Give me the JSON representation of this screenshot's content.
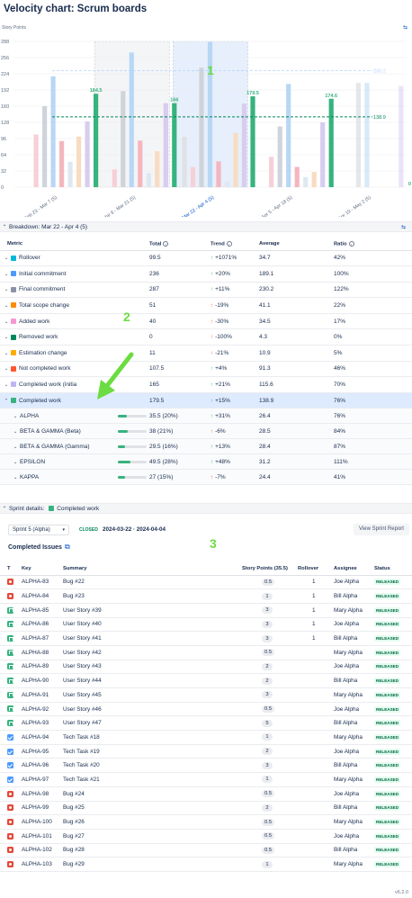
{
  "title": "Velocity chart: Scrum boards",
  "chart": {
    "ylabel": "Story Points",
    "yticks": [
      "288",
      "256",
      "224",
      "192",
      "160",
      "128",
      "96",
      "64",
      "32",
      "0"
    ],
    "groups": [
      {
        "label": "Feb 23 - Mar 7 (5)",
        "bars": [
          {
            "v": 0,
            "c": "#dfe1e6"
          },
          {
            "v": 104,
            "c": "#f6d0d7"
          },
          {
            "v": 160,
            "c": "#cfd4db"
          },
          {
            "v": 219,
            "c": "#b8d7f5"
          },
          {
            "v": 91,
            "c": "#f4b6bd"
          },
          {
            "v": 50,
            "c": "#dfe8f0"
          },
          {
            "v": 100,
            "c": "#f8dcc2"
          },
          {
            "v": 130,
            "c": "#d8ccf0"
          },
          {
            "v": 184.5,
            "c": "#36b37e",
            "label": "184.5"
          }
        ]
      },
      {
        "label": "Mar 8 - Mar 21 (5)",
        "bars": [
          {
            "v": 0,
            "c": "#dfe1e6"
          },
          {
            "v": 35,
            "c": "#f6d0d7"
          },
          {
            "v": 190,
            "c": "#cfd4db"
          },
          {
            "v": 266,
            "c": "#b8d7f5"
          },
          {
            "v": 92,
            "c": "#f4b6bd"
          },
          {
            "v": 28,
            "c": "#dfe8f0"
          },
          {
            "v": 71,
            "c": "#f8dcc2"
          },
          {
            "v": 166,
            "c": "#d8ccf0"
          },
          {
            "v": 166,
            "c": "#36b37e",
            "label": "166"
          }
        ]
      },
      {
        "label": "Mar 22 - Apr 4 (5)",
        "bars": [
          {
            "v": 99.5,
            "c": "#dfe1e6"
          },
          {
            "v": 40,
            "c": "#f6d0d7"
          },
          {
            "v": 236,
            "c": "#cfd4db"
          },
          {
            "v": 287,
            "c": "#b8d7f5"
          },
          {
            "v": 51,
            "c": "#f4b6bd"
          },
          {
            "v": 11,
            "c": "#dfe8f0"
          },
          {
            "v": 107.5,
            "c": "#f8dcc2"
          },
          {
            "v": 165,
            "c": "#d8ccf0"
          },
          {
            "v": 179.5,
            "c": "#36b37e",
            "label": "179.5"
          }
        ],
        "selected": true
      },
      {
        "label": "Apr 5 - Apr 18 (5)",
        "bars": [
          {
            "v": 0,
            "c": "#dfe1e6"
          },
          {
            "v": 60,
            "c": "#f6d0d7"
          },
          {
            "v": 120,
            "c": "#cfd4db"
          },
          {
            "v": 204,
            "c": "#b8d7f5"
          },
          {
            "v": 40,
            "c": "#f4b6bd"
          },
          {
            "v": 20,
            "c": "#dfe8f0"
          },
          {
            "v": 30,
            "c": "#f8dcc2"
          },
          {
            "v": 128,
            "c": "#d8ccf0"
          },
          {
            "v": 174.6,
            "c": "#36b37e",
            "label": "174.6"
          }
        ]
      },
      {
        "label": "Apr 19 - May 2 (5)",
        "bars": [
          {
            "v": 0,
            "c": "#dfe1e6"
          },
          {
            "v": 0,
            "c": "#f6d0d7"
          },
          {
            "v": 206,
            "c": "#cfd4db"
          },
          {
            "v": 206,
            "c": "#b8d7f5"
          },
          {
            "v": 0,
            "c": "#f4b6bd"
          },
          {
            "v": 0,
            "c": "#dfe8f0"
          },
          {
            "v": 0,
            "c": "#f8dcc2"
          },
          {
            "v": 200,
            "c": "#d8ccf0"
          },
          {
            "v": 0,
            "c": "#36b37e",
            "label": "0"
          }
        ],
        "future": true
      }
    ],
    "avg_line": {
      "value": 138.9,
      "label": "138.9"
    },
    "commit_line": {
      "value": 230.2,
      "label": "230.2"
    }
  },
  "chart_data": {
    "type": "bar",
    "ylabel": "Story Points",
    "ylim": [
      0,
      288
    ],
    "categories": [
      "Feb 23 - Mar 7 (5)",
      "Mar 8 - Mar 21 (5)",
      "Mar 22 - Apr 4 (5)",
      "Apr 5 - Apr 18 (5)",
      "Apr 19 - May 2 (5)"
    ],
    "series": [
      {
        "name": "Completed work",
        "values": [
          184.5,
          166,
          179.5,
          174.6,
          0
        ]
      }
    ],
    "reference_lines": [
      138.9,
      230.2
    ]
  },
  "breakdown": {
    "title": "Breakdown: Mar 22 - Apr 4 (5)",
    "headers": {
      "metric": "Metric",
      "total": "Total",
      "trend": "Trend",
      "average": "Average",
      "ratio": "Ratio"
    },
    "rows": [
      {
        "name": "Rollover",
        "color": "#00b8d9",
        "total": "99.5",
        "trend": "+1071%",
        "dir": "up",
        "avg": "34.7",
        "ratio": "42%"
      },
      {
        "name": "Initial commitment",
        "color": "#4c9aff",
        "total": "236",
        "trend": "+20%",
        "dir": "up",
        "avg": "189.1",
        "ratio": "100%"
      },
      {
        "name": "Final commitment",
        "color": "#8993a4",
        "total": "287",
        "trend": "+11%",
        "dir": "up",
        "avg": "230.2",
        "ratio": "122%"
      },
      {
        "name": "Total scope change",
        "color": "#ff8b00",
        "total": "51",
        "trend": "-19%",
        "dir": "dn",
        "avg": "41.1",
        "ratio": "22%"
      },
      {
        "name": "Added work",
        "color": "#f797d2",
        "total": "40",
        "trend": "-30%",
        "dir": "dn",
        "avg": "34.5",
        "ratio": "17%"
      },
      {
        "name": "Removed work",
        "color": "#00875a",
        "total": "0",
        "trend": "-100%",
        "dir": "dn",
        "avg": "4.3",
        "ratio": "0%"
      },
      {
        "name": "Estimation change",
        "color": "#ffab00",
        "total": "11",
        "trend": "-21%",
        "dir": "dn",
        "avg": "10.9",
        "ratio": "5%"
      },
      {
        "name": "Not completed work",
        "color": "#ff5630",
        "total": "107.5",
        "trend": "+4%",
        "dir": "up",
        "avg": "91.3",
        "ratio": "46%"
      },
      {
        "name": "Completed work (initia",
        "color": "#c0b6f2",
        "total": "165",
        "trend": "+21%",
        "dir": "up",
        "avg": "115.6",
        "ratio": "70%"
      },
      {
        "name": "Completed work",
        "color": "#36b37e",
        "total": "179.5",
        "trend": "+15%",
        "dir": "up",
        "avg": "138.9",
        "ratio": "76%",
        "selected": true
      }
    ],
    "teams": [
      {
        "name": "ALPHA",
        "total": "35.5 (20%)",
        "pct": 20,
        "trend": "+31%",
        "dir": "up",
        "avg": "26.4",
        "ratio": "76%"
      },
      {
        "name": "BETA & GAMMA (Beta)",
        "total": "38 (21%)",
        "pct": 21,
        "trend": "-6%",
        "dir": "dn",
        "avg": "28.5",
        "ratio": "84%"
      },
      {
        "name": "BETA & GAMMA (Gamma)",
        "total": "29.5 (16%)",
        "pct": 16,
        "trend": "+13%",
        "dir": "up",
        "avg": "28.4",
        "ratio": "87%"
      },
      {
        "name": "EPSILON",
        "total": "49.5 (28%)",
        "pct": 28,
        "trend": "+48%",
        "dir": "up",
        "avg": "31.2",
        "ratio": "111%"
      },
      {
        "name": "KAPPA",
        "total": "27 (15%)",
        "pct": 15,
        "trend": "-7%",
        "dir": "dn",
        "avg": "24.4",
        "ratio": "41%"
      }
    ]
  },
  "sprint": {
    "title_prefix": "Sprint details:",
    "title_metric": "Completed work",
    "selector": "Sprint 5 (Alpha)",
    "state": "CLOSED",
    "dates": "2024-03-22 · 2024-04-04",
    "report_button": "View Sprint Report",
    "issues_title": "Completed Issues",
    "headers": {
      "t": "T",
      "key": "Key",
      "summary": "Summary",
      "points": "Story Points (35.5)",
      "rollover": "Rollover",
      "assignee": "Assignee",
      "status": "Status"
    },
    "issues": [
      {
        "type": "bug",
        "key": "ALPHA-83",
        "summary": "Bug #22",
        "points": "0.5",
        "rollover": "1",
        "assignee": "Joe Alpha",
        "status": "RELEASED"
      },
      {
        "type": "bug",
        "key": "ALPHA-84",
        "summary": "Bug #23",
        "points": "1",
        "rollover": "1",
        "assignee": "Bill Alpha",
        "status": "RELEASED"
      },
      {
        "type": "story",
        "key": "ALPHA-85",
        "summary": "User Story #39",
        "points": "3",
        "rollover": "1",
        "assignee": "Mary Alpha",
        "status": "RELEASED"
      },
      {
        "type": "story",
        "key": "ALPHA-86",
        "summary": "User Story #40",
        "points": "3",
        "rollover": "1",
        "assignee": "Joe Alpha",
        "status": "RELEASED"
      },
      {
        "type": "story",
        "key": "ALPHA-87",
        "summary": "User Story #41",
        "points": "3",
        "rollover": "1",
        "assignee": "Bill Alpha",
        "status": "RELEASED"
      },
      {
        "type": "story",
        "key": "ALPHA-88",
        "summary": "User Story #42",
        "points": "0.5",
        "rollover": "",
        "assignee": "Mary Alpha",
        "status": "RELEASED"
      },
      {
        "type": "story",
        "key": "ALPHA-89",
        "summary": "User Story #43",
        "points": "2",
        "rollover": "",
        "assignee": "Joe Alpha",
        "status": "RELEASED"
      },
      {
        "type": "story",
        "key": "ALPHA-90",
        "summary": "User Story #44",
        "points": "2",
        "rollover": "",
        "assignee": "Bill Alpha",
        "status": "RELEASED"
      },
      {
        "type": "story",
        "key": "ALPHA-91",
        "summary": "User Story #45",
        "points": "3",
        "rollover": "",
        "assignee": "Mary Alpha",
        "status": "RELEASED"
      },
      {
        "type": "story",
        "key": "ALPHA-92",
        "summary": "User Story #46",
        "points": "0.5",
        "rollover": "",
        "assignee": "Joe Alpha",
        "status": "RELEASED"
      },
      {
        "type": "story",
        "key": "ALPHA-93",
        "summary": "User Story #47",
        "points": "5",
        "rollover": "",
        "assignee": "Bill Alpha",
        "status": "RELEASED"
      },
      {
        "type": "task",
        "key": "ALPHA-94",
        "summary": "Tech Task #18",
        "points": "1",
        "rollover": "",
        "assignee": "Mary Alpha",
        "status": "RELEASED"
      },
      {
        "type": "task",
        "key": "ALPHA-95",
        "summary": "Tech Task #19",
        "points": "2",
        "rollover": "",
        "assignee": "Joe Alpha",
        "status": "RELEASED"
      },
      {
        "type": "task",
        "key": "ALPHA-96",
        "summary": "Tech Task #20",
        "points": "3",
        "rollover": "",
        "assignee": "Bill Alpha",
        "status": "RELEASED"
      },
      {
        "type": "task",
        "key": "ALPHA-97",
        "summary": "Tech Task #21",
        "points": "1",
        "rollover": "",
        "assignee": "Mary Alpha",
        "status": "RELEASED"
      },
      {
        "type": "bug",
        "key": "ALPHA-98",
        "summary": "Bug #24",
        "points": "0.5",
        "rollover": "",
        "assignee": "Joe Alpha",
        "status": "RELEASED"
      },
      {
        "type": "bug",
        "key": "ALPHA-99",
        "summary": "Bug #25",
        "points": "2",
        "rollover": "",
        "assignee": "Bill Alpha",
        "status": "RELEASED"
      },
      {
        "type": "bug",
        "key": "ALPHA-100",
        "summary": "Bug #26",
        "points": "0.5",
        "rollover": "",
        "assignee": "Mary Alpha",
        "status": "RELEASED"
      },
      {
        "type": "bug",
        "key": "ALPHA-101",
        "summary": "Bug #27",
        "points": "0.5",
        "rollover": "",
        "assignee": "Joe Alpha",
        "status": "RELEASED"
      },
      {
        "type": "bug",
        "key": "ALPHA-102",
        "summary": "Bug #28",
        "points": "0.5",
        "rollover": "",
        "assignee": "Bill Alpha",
        "status": "RELEASED"
      },
      {
        "type": "bug",
        "key": "ALPHA-103",
        "summary": "Bug #29",
        "points": "1",
        "rollover": "",
        "assignee": "Mary Alpha",
        "status": "RELEASED"
      }
    ]
  },
  "annotations": [
    "1",
    "2",
    "3"
  ],
  "version": "v6.2.0"
}
